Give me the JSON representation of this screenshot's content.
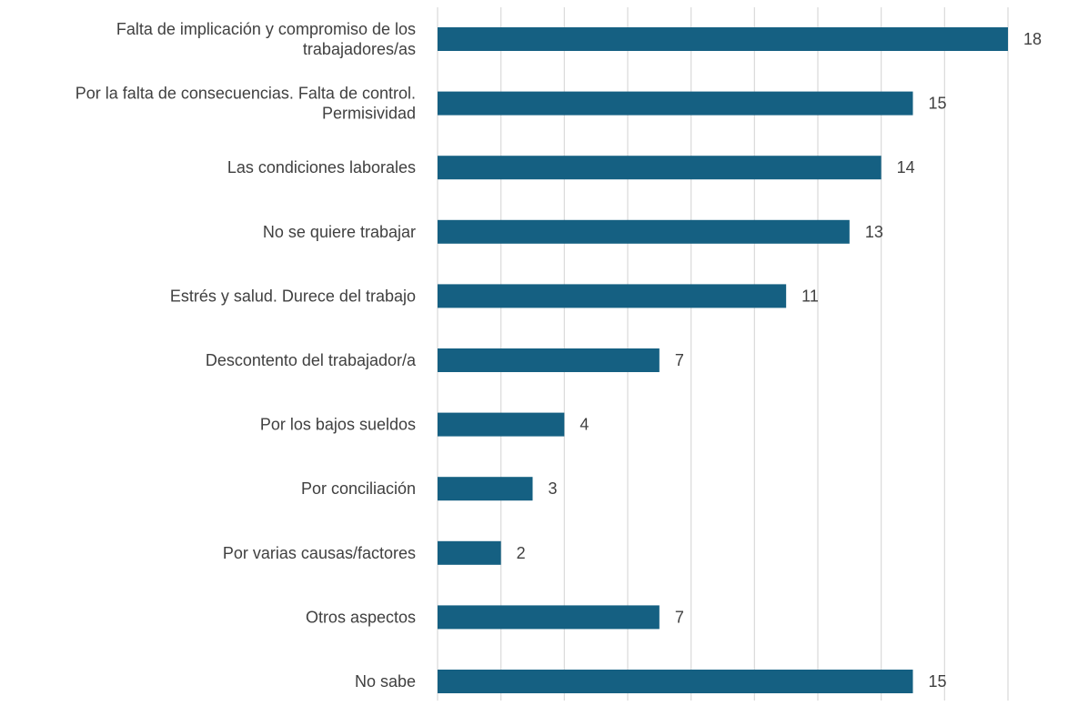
{
  "chart_data": {
    "type": "bar",
    "orientation": "horizontal",
    "categories": [
      "Falta de implicación y compromiso de los trabajadores/as",
      "Por la falta de consecuencias. Falta de control. Permisividad",
      "Las condiciones laborales",
      "No se quiere trabajar",
      "Estrés y salud. Durece del trabajo",
      "Descontento del trabajador/a",
      "Por los bajos sueldos",
      "Por conciliación",
      "Por varias causas/factores",
      "Otros aspectos",
      "No sabe"
    ],
    "category_lines": [
      [
        "Falta de implicación y compromiso de los",
        "trabajadores/as"
      ],
      [
        "Por la falta de consecuencias. Falta de control.",
        "Permisividad"
      ],
      [
        "Las condiciones laborales"
      ],
      [
        "No se quiere trabajar"
      ],
      [
        "Estrés y salud. Durece del trabajo"
      ],
      [
        "Descontento del trabajador/a"
      ],
      [
        "Por los bajos sueldos"
      ],
      [
        "Por conciliación"
      ],
      [
        "Por varias causas/factores"
      ],
      [
        "Otros aspectos"
      ],
      [
        "No sabe"
      ]
    ],
    "values": [
      18,
      15,
      14,
      13,
      11,
      7,
      4,
      3,
      2,
      7,
      15
    ],
    "xlim": [
      0,
      18
    ],
    "grid": true,
    "grid_step": 2,
    "legend": "none",
    "colors": {
      "bar": "#156082",
      "grid": "#d9d9d9",
      "text": "#404040"
    }
  }
}
